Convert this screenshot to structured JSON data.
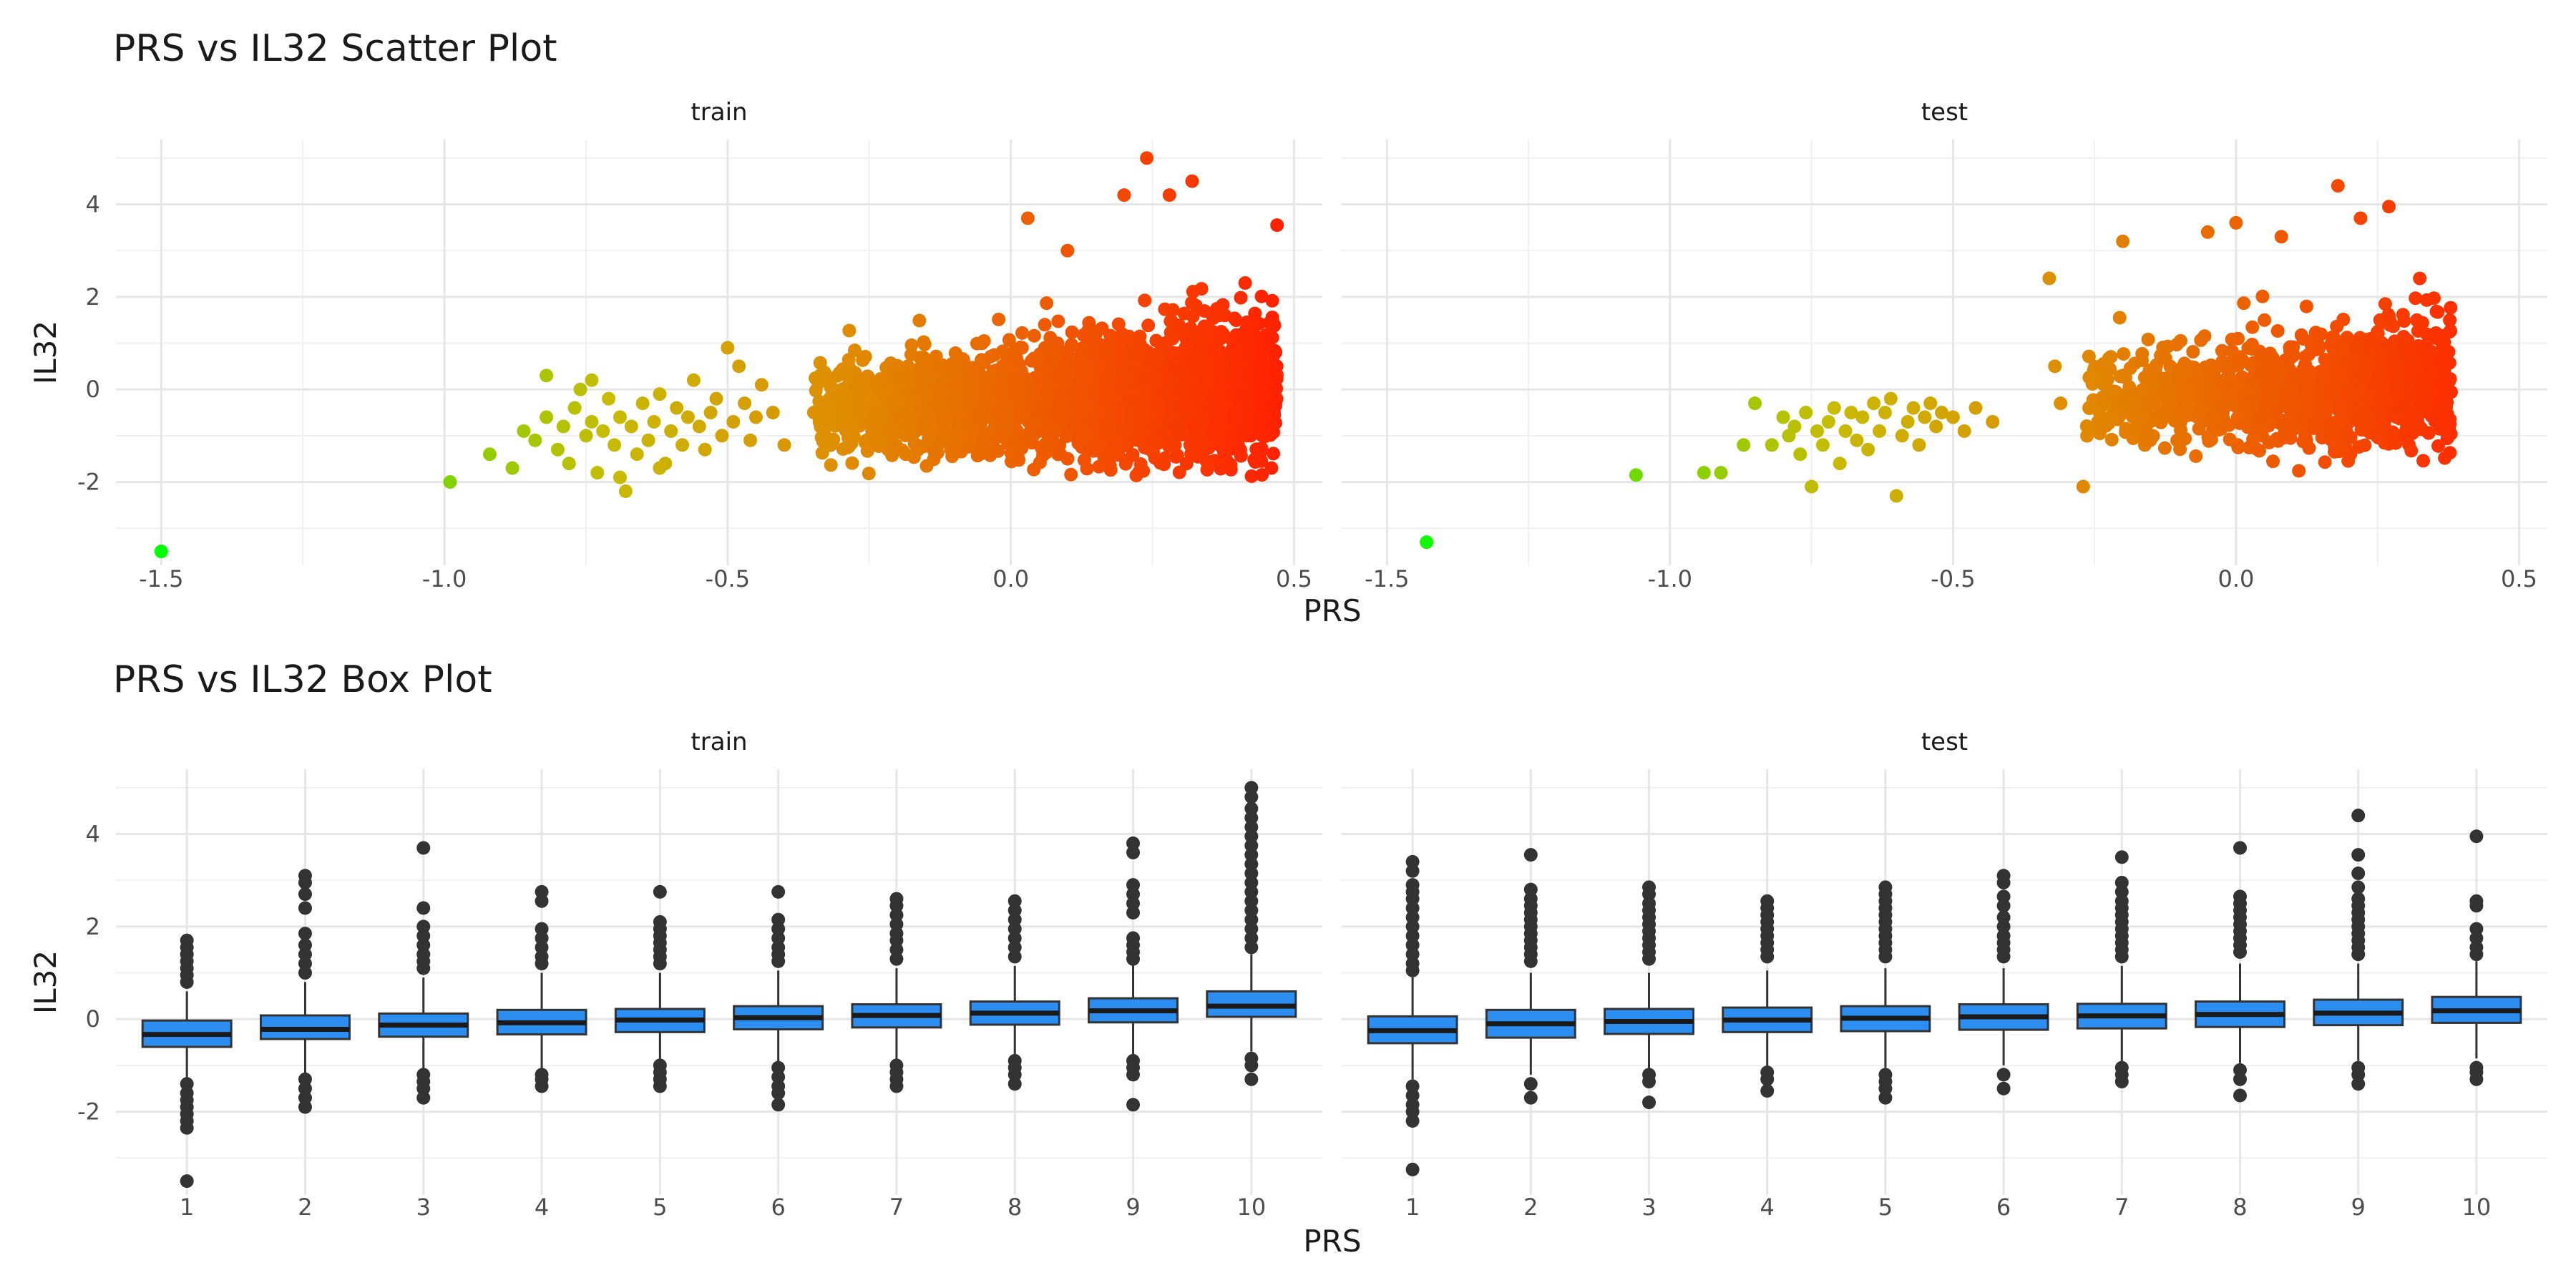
{
  "chart_data": [
    {
      "type": "scatter",
      "title": "PRS vs IL32 Scatter Plot",
      "xlabel": "PRS",
      "ylabel": "IL32",
      "ylim": [
        -3.8,
        5.4
      ],
      "y_ticks": [
        -2,
        0,
        2,
        4
      ],
      "y_tick_labels": [
        "-2",
        "0",
        "2",
        "4"
      ],
      "x_ticks": [
        -1.5,
        -1.0,
        -0.5,
        0.0,
        0.5
      ],
      "x_tick_labels": [
        "-1.5",
        "-1.0",
        "-0.5",
        "0.0",
        "0.5"
      ],
      "grid": true,
      "color_scale": {
        "low": "#00ff00",
        "mid": "#c8bb00",
        "high": "#ff2200",
        "range": [
          -1.5,
          0.47
        ]
      },
      "panels": [
        {
          "strip": "train",
          "xlim": [
            -1.58,
            0.55
          ],
          "points": [
            [
              -1.5,
              -3.5
            ],
            [
              -0.99,
              -2.0
            ],
            [
              -0.92,
              -1.4
            ],
            [
              -0.88,
              -1.7
            ],
            [
              -0.86,
              -0.9
            ],
            [
              -0.84,
              -1.1
            ],
            [
              -0.82,
              -0.6
            ],
            [
              -0.8,
              -1.3
            ],
            [
              -0.79,
              -0.8
            ],
            [
              -0.78,
              -1.6
            ],
            [
              -0.77,
              -0.4
            ],
            [
              -0.76,
              0.0
            ],
            [
              -0.75,
              -1.0
            ],
            [
              -0.74,
              -0.7
            ],
            [
              -0.73,
              -1.8
            ],
            [
              -0.72,
              -0.9
            ],
            [
              -0.71,
              -0.2
            ],
            [
              -0.7,
              -1.2
            ],
            [
              -0.69,
              -0.6
            ],
            [
              -0.68,
              -2.2
            ],
            [
              -0.67,
              -0.8
            ],
            [
              -0.66,
              -1.4
            ],
            [
              -0.65,
              -0.3
            ],
            [
              -0.64,
              -1.1
            ],
            [
              -0.63,
              -0.7
            ],
            [
              -0.62,
              -0.1
            ],
            [
              -0.61,
              -1.6
            ],
            [
              -0.6,
              -0.9
            ],
            [
              -0.59,
              -0.4
            ],
            [
              -0.58,
              -1.2
            ],
            [
              -0.57,
              -0.6
            ],
            [
              -0.56,
              0.2
            ],
            [
              -0.55,
              -0.8
            ],
            [
              -0.54,
              -1.3
            ],
            [
              -0.53,
              -0.5
            ],
            [
              -0.52,
              -0.2
            ],
            [
              -0.51,
              -1.0
            ],
            [
              -0.5,
              0.9
            ],
            [
              -0.49,
              -0.7
            ],
            [
              -0.48,
              0.5
            ],
            [
              -0.47,
              -0.3
            ],
            [
              -0.46,
              -1.1
            ],
            [
              -0.45,
              -0.6
            ],
            [
              -0.44,
              0.1
            ],
            [
              -0.42,
              -0.5
            ],
            [
              -0.4,
              -1.2
            ],
            [
              -0.82,
              0.3
            ],
            [
              -0.74,
              0.2
            ],
            [
              -0.69,
              -1.9
            ],
            [
              -0.62,
              -1.7
            ]
          ]
        },
        {
          "strip": "test",
          "xlim": [
            -1.58,
            0.55
          ],
          "points": [
            [
              -1.43,
              -3.3
            ],
            [
              -1.06,
              -1.85
            ],
            [
              -0.94,
              -1.8
            ],
            [
              -0.91,
              -1.8
            ],
            [
              -0.87,
              -1.2
            ],
            [
              -0.85,
              -0.3
            ],
            [
              -0.82,
              -1.2
            ],
            [
              -0.8,
              -0.6
            ],
            [
              -0.79,
              -1.0
            ],
            [
              -0.78,
              -0.8
            ],
            [
              -0.77,
              -1.4
            ],
            [
              -0.76,
              -0.5
            ],
            [
              -0.75,
              -2.1
            ],
            [
              -0.74,
              -0.9
            ],
            [
              -0.73,
              -1.2
            ],
            [
              -0.72,
              -0.7
            ],
            [
              -0.71,
              -0.4
            ],
            [
              -0.7,
              -1.6
            ],
            [
              -0.69,
              -0.9
            ],
            [
              -0.68,
              -0.5
            ],
            [
              -0.67,
              -1.1
            ],
            [
              -0.66,
              -0.6
            ],
            [
              -0.65,
              -1.3
            ],
            [
              -0.64,
              -0.3
            ],
            [
              -0.63,
              -0.9
            ],
            [
              -0.62,
              -0.5
            ],
            [
              -0.61,
              -0.2
            ],
            [
              -0.6,
              -2.3
            ],
            [
              -0.59,
              -1.0
            ],
            [
              -0.58,
              -0.7
            ],
            [
              -0.57,
              -0.4
            ],
            [
              -0.56,
              -1.2
            ],
            [
              -0.55,
              -0.6
            ],
            [
              -0.54,
              -0.3
            ],
            [
              -0.53,
              -0.8
            ],
            [
              -0.52,
              -0.5
            ],
            [
              -0.5,
              -0.6
            ],
            [
              -0.48,
              -0.9
            ],
            [
              -0.46,
              -0.4
            ],
            [
              -0.43,
              -0.7
            ],
            [
              -0.33,
              2.4
            ],
            [
              -0.32,
              0.5
            ],
            [
              -0.31,
              -0.3
            ],
            [
              -0.27,
              -2.1
            ],
            [
              -0.2,
              3.2
            ]
          ]
        }
      ],
      "dense_cloud": {
        "train": {
          "x_range": [
            -0.35,
            0.47
          ],
          "y_center": -0.2,
          "n": 2200,
          "outliers": [
            [
              0.24,
              5.0
            ],
            [
              0.32,
              4.5
            ],
            [
              0.47,
              3.55
            ],
            [
              0.2,
              4.2
            ],
            [
              0.03,
              3.7
            ],
            [
              0.28,
              4.2
            ],
            [
              0.1,
              3.0
            ]
          ]
        },
        "test": {
          "x_range": [
            -0.27,
            0.38
          ],
          "y_center": 0.0,
          "n": 1100,
          "outliers": [
            [
              0.18,
              4.4
            ],
            [
              0.27,
              3.95
            ],
            [
              0.0,
              3.6
            ],
            [
              0.08,
              3.3
            ],
            [
              -0.05,
              3.4
            ],
            [
              0.22,
              3.7
            ]
          ]
        }
      }
    },
    {
      "type": "box",
      "title": "PRS vs IL32 Box Plot",
      "xlabel": "PRS",
      "ylabel": "IL32",
      "ylim": [
        -3.8,
        5.4
      ],
      "y_ticks": [
        -2,
        0,
        2,
        4
      ],
      "y_tick_labels": [
        "-2",
        "0",
        "2",
        "4"
      ],
      "categories": [
        "1",
        "2",
        "3",
        "4",
        "5",
        "6",
        "7",
        "8",
        "9",
        "10"
      ],
      "box_color": "#2b8ef0",
      "grid": true,
      "panels": [
        {
          "strip": "train",
          "boxes": [
            {
              "q1": -0.6,
              "median": -0.33,
              "q3": -0.03,
              "low": -1.3,
              "high": 0.6,
              "outliers": [
                1.7,
                1.55,
                1.4,
                1.25,
                1.1,
                0.95,
                0.8,
                -1.4,
                -1.6,
                -1.75,
                -1.9,
                -2.05,
                -2.2,
                -2.35,
                -3.5
              ]
            },
            {
              "q1": -0.43,
              "median": -0.22,
              "q3": 0.08,
              "low": -1.2,
              "high": 0.8,
              "outliers": [
                3.1,
                2.95,
                2.7,
                2.4,
                1.85,
                1.6,
                1.4,
                1.2,
                1.0,
                -1.3,
                -1.5,
                -1.7,
                -1.9
              ]
            },
            {
              "q1": -0.38,
              "median": -0.13,
              "q3": 0.12,
              "low": -1.1,
              "high": 0.9,
              "outliers": [
                3.7,
                2.4,
                2.0,
                1.8,
                1.6,
                1.4,
                1.25,
                1.1,
                -1.2,
                -1.35,
                -1.5,
                -1.7
              ]
            },
            {
              "q1": -0.33,
              "median": -0.08,
              "q3": 0.2,
              "low": -1.1,
              "high": 1.0,
              "outliers": [
                2.75,
                2.55,
                1.95,
                1.75,
                1.55,
                1.35,
                1.2,
                -1.2,
                -1.3,
                -1.45
              ]
            },
            {
              "q1": -0.28,
              "median": -0.02,
              "q3": 0.22,
              "low": -1.0,
              "high": 1.0,
              "outliers": [
                2.75,
                2.1,
                1.95,
                1.8,
                1.65,
                1.5,
                1.35,
                1.2,
                -1.0,
                -1.15,
                -1.3,
                -1.45
              ]
            },
            {
              "q1": -0.22,
              "median": 0.03,
              "q3": 0.28,
              "low": -0.95,
              "high": 1.05,
              "outliers": [
                2.75,
                2.15,
                1.95,
                1.75,
                1.55,
                1.4,
                1.25,
                -1.05,
                -1.25,
                -1.45,
                -1.6,
                -1.85
              ]
            },
            {
              "q1": -0.18,
              "median": 0.08,
              "q3": 0.32,
              "low": -0.9,
              "high": 1.1,
              "outliers": [
                2.6,
                2.45,
                2.25,
                2.05,
                1.85,
                1.7,
                1.5,
                1.3,
                -1.0,
                -1.15,
                -1.3,
                -1.45
              ]
            },
            {
              "q1": -0.12,
              "median": 0.13,
              "q3": 0.38,
              "low": -0.85,
              "high": 1.15,
              "outliers": [
                2.55,
                2.35,
                2.15,
                1.95,
                1.75,
                1.55,
                1.35,
                -0.9,
                -1.05,
                -1.2,
                -1.4
              ]
            },
            {
              "q1": -0.07,
              "median": 0.18,
              "q3": 0.45,
              "low": -0.8,
              "high": 1.2,
              "outliers": [
                3.8,
                3.6,
                2.9,
                2.7,
                2.5,
                2.3,
                1.75,
                1.6,
                1.45,
                1.3,
                -0.9,
                -1.05,
                -1.2,
                -1.85
              ]
            },
            {
              "q1": 0.05,
              "median": 0.28,
              "q3": 0.6,
              "low": -0.7,
              "high": 1.4,
              "outliers": [
                5.0,
                4.8,
                4.55,
                4.35,
                4.15,
                3.95,
                3.75,
                3.55,
                3.35,
                3.15,
                2.95,
                2.75,
                2.55,
                2.35,
                2.15,
                1.95,
                1.75,
                1.55,
                -0.85,
                -1.0,
                -1.3
              ]
            }
          ]
        },
        {
          "strip": "test",
          "boxes": [
            {
              "q1": -0.52,
              "median": -0.25,
              "q3": 0.06,
              "low": -1.3,
              "high": 0.9,
              "outliers": [
                3.4,
                3.2,
                2.9,
                2.75,
                2.6,
                2.4,
                2.2,
                2.0,
                1.8,
                1.6,
                1.4,
                1.2,
                1.05,
                -1.45,
                -1.65,
                -1.85,
                -2.0,
                -2.2,
                -3.25
              ]
            },
            {
              "q1": -0.4,
              "median": -0.1,
              "q3": 0.2,
              "low": -1.2,
              "high": 1.0,
              "outliers": [
                3.55,
                2.8,
                2.6,
                2.45,
                2.3,
                2.15,
                2.0,
                1.85,
                1.7,
                1.55,
                1.4,
                1.25,
                -1.4,
                -1.7
              ]
            },
            {
              "q1": -0.32,
              "median": -0.05,
              "q3": 0.22,
              "low": -1.1,
              "high": 1.0,
              "outliers": [
                2.85,
                2.7,
                2.5,
                2.35,
                2.2,
                2.05,
                1.9,
                1.75,
                1.6,
                1.45,
                1.3,
                -1.2,
                -1.35,
                -1.8
              ]
            },
            {
              "q1": -0.28,
              "median": -0.02,
              "q3": 0.25,
              "low": -1.05,
              "high": 1.05,
              "outliers": [
                2.55,
                2.4,
                2.25,
                2.1,
                1.95,
                1.8,
                1.65,
                1.5,
                1.35,
                -1.15,
                -1.3,
                -1.55
              ]
            },
            {
              "q1": -0.26,
              "median": 0.02,
              "q3": 0.28,
              "low": -1.05,
              "high": 1.1,
              "outliers": [
                2.85,
                2.7,
                2.55,
                2.4,
                2.25,
                2.1,
                1.95,
                1.8,
                1.65,
                1.5,
                1.35,
                -1.2,
                -1.35,
                -1.5,
                -1.7
              ]
            },
            {
              "q1": -0.23,
              "median": 0.05,
              "q3": 0.32,
              "low": -1.0,
              "high": 1.1,
              "outliers": [
                3.1,
                2.95,
                2.65,
                2.45,
                2.2,
                2.0,
                1.8,
                1.65,
                1.5,
                1.35,
                -1.2,
                -1.5
              ]
            },
            {
              "q1": -0.2,
              "median": 0.07,
              "q3": 0.33,
              "low": -1.0,
              "high": 1.15,
              "outliers": [
                3.5,
                2.95,
                2.75,
                2.55,
                2.4,
                2.25,
                2.1,
                1.95,
                1.8,
                1.65,
                1.5,
                1.35,
                -1.05,
                -1.2,
                -1.35
              ]
            },
            {
              "q1": -0.17,
              "median": 0.1,
              "q3": 0.38,
              "low": -0.95,
              "high": 1.2,
              "outliers": [
                3.7,
                2.65,
                2.5,
                2.35,
                2.2,
                2.05,
                1.9,
                1.75,
                1.6,
                1.45,
                -1.1,
                -1.3,
                -1.65
              ]
            },
            {
              "q1": -0.13,
              "median": 0.13,
              "q3": 0.42,
              "low": -0.9,
              "high": 1.2,
              "outliers": [
                4.4,
                3.55,
                3.15,
                2.85,
                2.6,
                2.45,
                2.3,
                2.15,
                2.0,
                1.85,
                1.7,
                1.55,
                1.4,
                -1.05,
                -1.2,
                -1.4
              ]
            },
            {
              "q1": -0.08,
              "median": 0.18,
              "q3": 0.48,
              "low": -0.85,
              "high": 1.25,
              "outliers": [
                3.95,
                2.55,
                2.45,
                1.95,
                1.75,
                1.55,
                1.4,
                -1.05,
                -1.15,
                -1.3
              ]
            }
          ]
        }
      ]
    }
  ]
}
